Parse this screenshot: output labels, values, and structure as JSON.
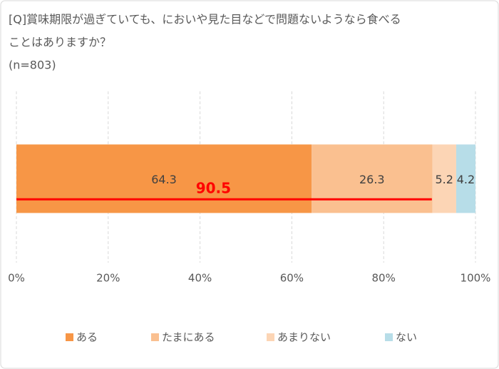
{
  "chart_data": {
    "type": "stacked_barh",
    "title_lines": [
      "[Q]賞味期限が過ぎていても、においや見た目などで問題ないようなら食べる",
      "ことはありますか？"
    ],
    "subtitle": "(n=803)",
    "categories": [
      null
    ],
    "series": [
      {
        "name": "ある",
        "color": "#f79646",
        "values": [
          64.3
        ]
      },
      {
        "name": "たまにある",
        "color": "#fac090",
        "values": [
          26.3
        ]
      },
      {
        "name": "あまりない",
        "color": "#fcd5b5",
        "values": [
          5.2
        ]
      },
      {
        "name": "ない",
        "color": "#b7dde8",
        "values": [
          4.2
        ]
      }
    ],
    "xlim": [
      0,
      100
    ],
    "xticks": [
      {
        "value": 0,
        "label": "0%"
      },
      {
        "value": 20,
        "label": "20%"
      },
      {
        "value": 40,
        "label": "40%"
      },
      {
        "value": 60,
        "label": "60%"
      },
      {
        "value": 80,
        "label": "80%"
      },
      {
        "value": 100,
        "label": "100%"
      }
    ],
    "grid": true,
    "total_line": {
      "value": 90.5,
      "color": "#ff0000"
    },
    "legend": "bottom"
  }
}
